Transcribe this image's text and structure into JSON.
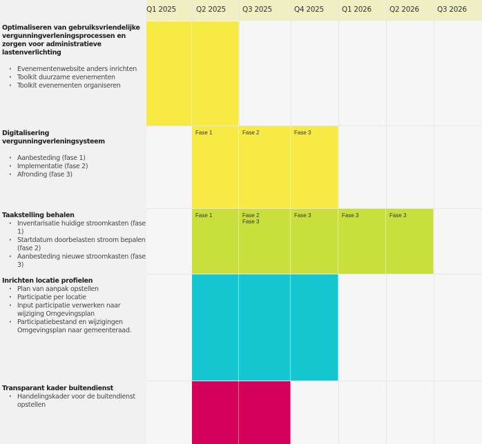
{
  "quarters": [
    "Q1 2025",
    "Q2 2025",
    "Q3 2025",
    "Q4 2025",
    "Q1 2026",
    "Q2 2026",
    "Q3 2026"
  ],
  "colors": {
    "yellow": "#f7ea45",
    "green": "#c8df3c",
    "cyan": "#14c6cf",
    "magenta": "#d4005a",
    "header": "#f0efc4"
  },
  "rows": [
    {
      "title": "Optimaliseren van gebruiksvriendelijke vergunningverleningsprocessen en zorgen voor administratieve lastenverlichting",
      "items": [
        "Evenementenwebsite anders inrichten",
        "Toolkit duurzame evenementen",
        "Toolkit evenementen organiseren"
      ],
      "color": "#f7ea45",
      "cells": [
        {
          "q": 0,
          "label": ""
        },
        {
          "q": 1,
          "label": ""
        }
      ]
    },
    {
      "title": "Digitalisering vergunningverleningsysteem",
      "items": [
        "Aanbesteding  (fase 1)",
        "Implementatie (fase 2)",
        "Afronding (fase 3)"
      ],
      "color": "#f7ea45",
      "cells": [
        {
          "q": 1,
          "label": "Fase 1"
        },
        {
          "q": 2,
          "label": "Fase 2"
        },
        {
          "q": 3,
          "label": "Fase 3"
        }
      ]
    },
    {
      "title": "Taakstelling behalen",
      "items": [
        "Inventarisatie huidige stroomkasten (fase 1)",
        "Startdatum doorbelasten stroom bepalen (fase 2)",
        "Aanbesteding nieuwe stroomkasten (fase 3)"
      ],
      "color": "#c8df3c",
      "cells": [
        {
          "q": 1,
          "label": "Fase 1"
        },
        {
          "q": 2,
          "label": "Fase 2\nFase 3"
        },
        {
          "q": 3,
          "label": "Fase 3"
        },
        {
          "q": 4,
          "label": "Fase 3"
        },
        {
          "q": 5,
          "label": "Fase 3"
        }
      ]
    },
    {
      "title": "Inrichten locatie profielen",
      "items": [
        "Plan van aanpak opstellen",
        "Participatie per locatie",
        "Input participatie verwerken naar wijziging Omgevingsplan",
        "Participatiebestand en wijzigingen Omgevingsplan naar gemeenteraad."
      ],
      "color": "#14c6cf",
      "cells": [
        {
          "q": 1,
          "label": ""
        },
        {
          "q": 2,
          "label": ""
        },
        {
          "q": 3,
          "label": ""
        }
      ]
    },
    {
      "title": "Transparant kader buitendienst",
      "items": [
        "Handelingskader voor de buitendienst opstellen"
      ],
      "color": "#d4005a",
      "cells": [
        {
          "q": 1,
          "label": ""
        },
        {
          "q": 2,
          "label": ""
        }
      ]
    }
  ]
}
